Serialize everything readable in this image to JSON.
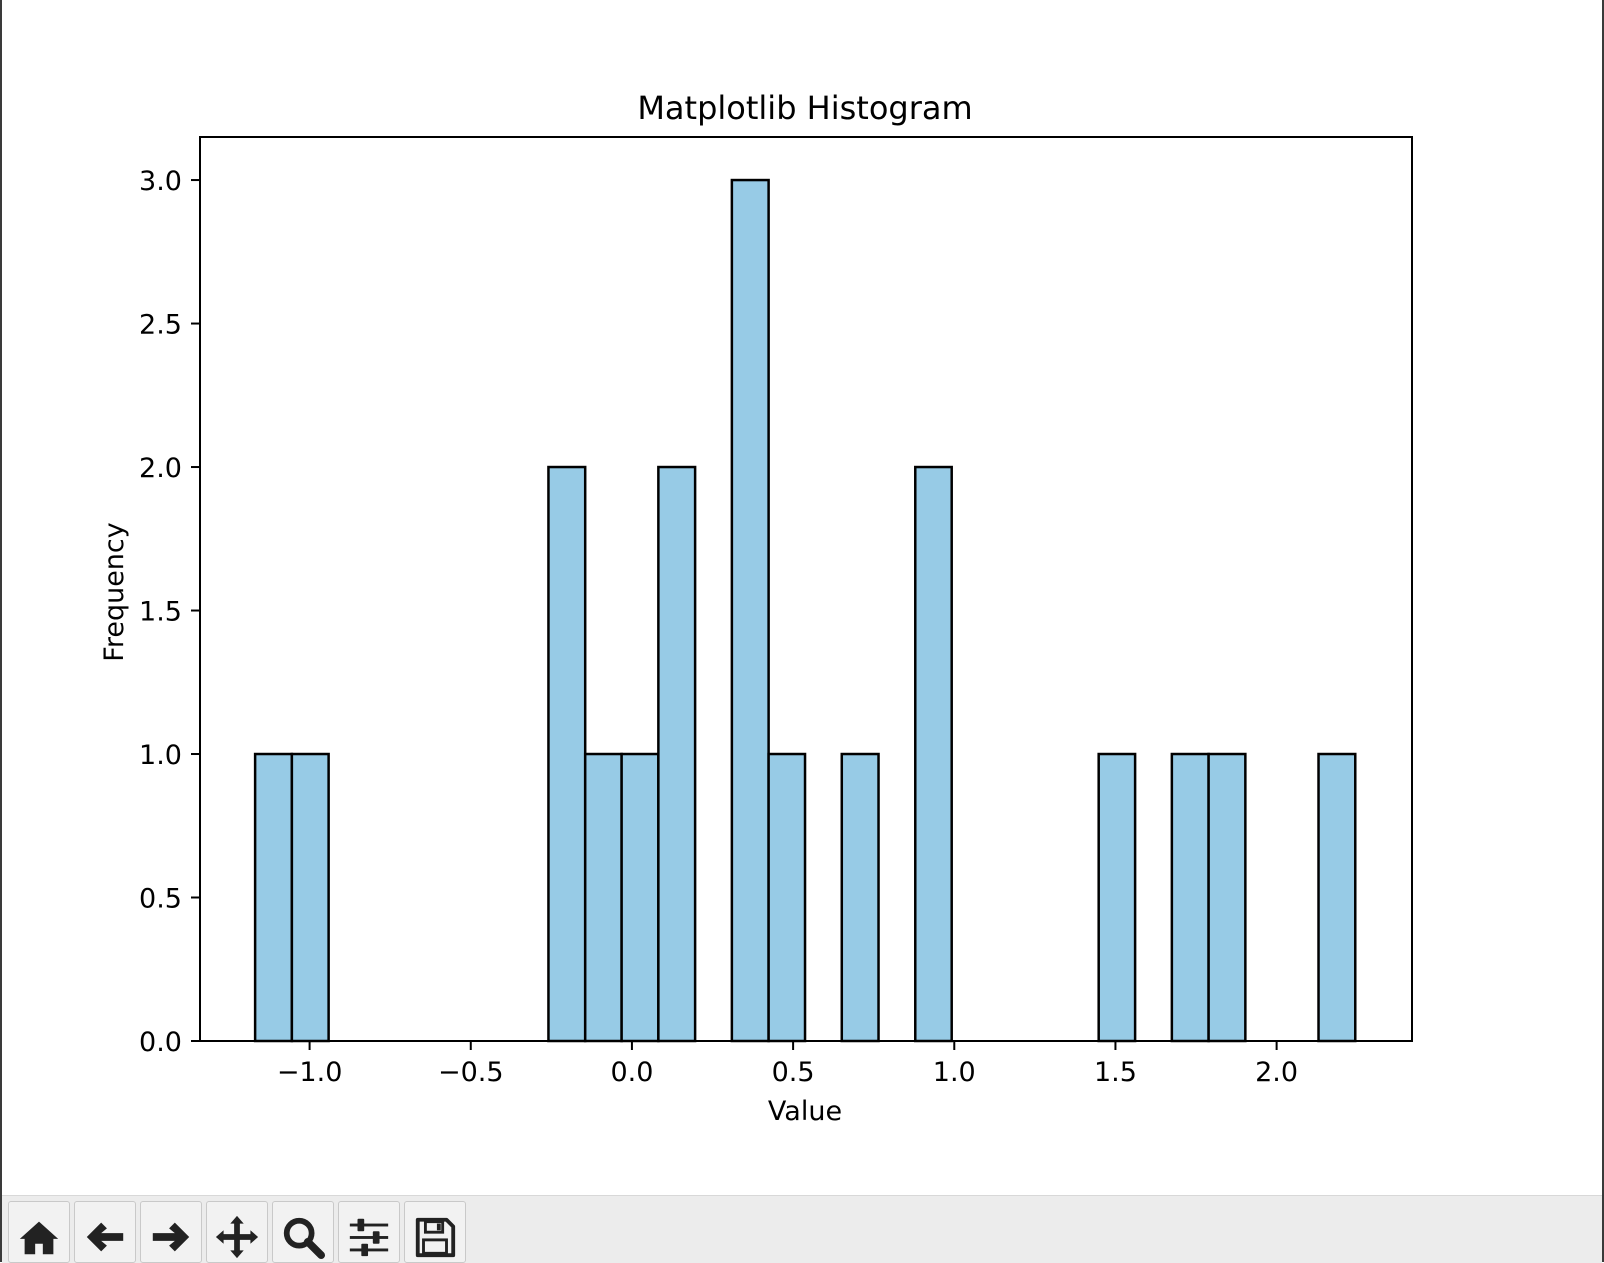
{
  "toolbar": {
    "buttons": [
      {
        "icon": "home-icon",
        "name": "home-button"
      },
      {
        "icon": "arrow-left-icon",
        "name": "back-button"
      },
      {
        "icon": "arrow-right-icon",
        "name": "forward-button"
      },
      {
        "icon": "move-icon",
        "name": "pan-button"
      },
      {
        "icon": "magnifier-icon",
        "name": "zoom-button"
      },
      {
        "icon": "sliders-icon",
        "name": "configure-subplots-button"
      },
      {
        "icon": "floppy-disk-icon",
        "name": "save-button"
      }
    ]
  },
  "chart_data": {
    "type": "bar",
    "title": "Matplotlib Histogram",
    "xlabel": "Value",
    "ylabel": "Frequency",
    "xlim": [
      -1.34,
      2.42
    ],
    "ylim": [
      0,
      3.15
    ],
    "xticks": [
      -1.0,
      -0.5,
      0.0,
      0.5,
      1.0,
      1.5,
      2.0
    ],
    "xtick_labels": [
      "−1.0",
      "−0.5",
      "0.0",
      "0.5",
      "1.0",
      "1.5",
      "2.0"
    ],
    "yticks": [
      0.0,
      0.5,
      1.0,
      1.5,
      2.0,
      2.5,
      3.0
    ],
    "ytick_labels": [
      "0.0",
      "0.5",
      "1.0",
      "1.5",
      "2.0",
      "2.5",
      "3.0"
    ],
    "grid": false,
    "bar_fill": "#97cbe6",
    "bar_edge": "#000000",
    "bins": [
      {
        "left": -1.169,
        "right": -1.055,
        "count": 1
      },
      {
        "left": -1.055,
        "right": -0.941,
        "count": 1
      },
      {
        "left": -0.259,
        "right": -0.145,
        "count": 2
      },
      {
        "left": -0.145,
        "right": -0.032,
        "count": 1
      },
      {
        "left": -0.032,
        "right": 0.082,
        "count": 1
      },
      {
        "left": 0.082,
        "right": 0.196,
        "count": 2
      },
      {
        "left": 0.31,
        "right": 0.424,
        "count": 3
      },
      {
        "left": 0.424,
        "right": 0.537,
        "count": 1
      },
      {
        "left": 0.651,
        "right": 0.765,
        "count": 1
      },
      {
        "left": 0.879,
        "right": 0.992,
        "count": 2
      },
      {
        "left": 1.448,
        "right": 1.561,
        "count": 1
      },
      {
        "left": 1.675,
        "right": 1.789,
        "count": 1
      },
      {
        "left": 1.789,
        "right": 1.903,
        "count": 1
      },
      {
        "left": 2.13,
        "right": 2.244,
        "count": 1
      }
    ]
  }
}
